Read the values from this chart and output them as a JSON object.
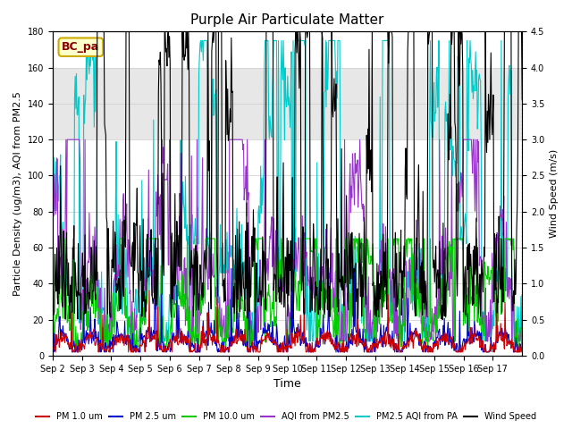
{
  "title": "Purple Air Particulate Matter",
  "xlabel": "Time",
  "ylabel_left": "Particle Density (ug/m3), AQI from PM2.5",
  "ylabel_right": "Wind Speed (m/s)",
  "annotation_text": "BC_pa",
  "ylim_left": [
    0,
    180
  ],
  "ylim_right": [
    0.0,
    4.5
  ],
  "yticks_left": [
    0,
    20,
    40,
    60,
    80,
    100,
    120,
    140,
    160,
    180
  ],
  "yticks_right": [
    0.0,
    0.5,
    1.0,
    1.5,
    2.0,
    2.5,
    3.0,
    3.5,
    4.0,
    4.5
  ],
  "xtick_labels": [
    "Sep 2",
    "Sep 3",
    "Sep 4",
    "Sep 5",
    "Sep 6",
    "Sep 7",
    "Sep 8",
    "Sep 9",
    "Sep 10",
    "Sep 11",
    "Sep 12",
    "Sep 13",
    "Sep 14",
    "Sep 15",
    "Sep 16",
    "Sep 17"
  ],
  "n_days": 16,
  "shaded_region": [
    120,
    160
  ],
  "colors": {
    "PM1": "#cc0000",
    "PM25": "#0000cc",
    "PM10": "#00cc00",
    "AQI_PM25": "#9933cc",
    "AQI_PA": "#00cccc",
    "wind": "#000000"
  },
  "background_color": "#ffffff",
  "grid_color": "#cccccc"
}
